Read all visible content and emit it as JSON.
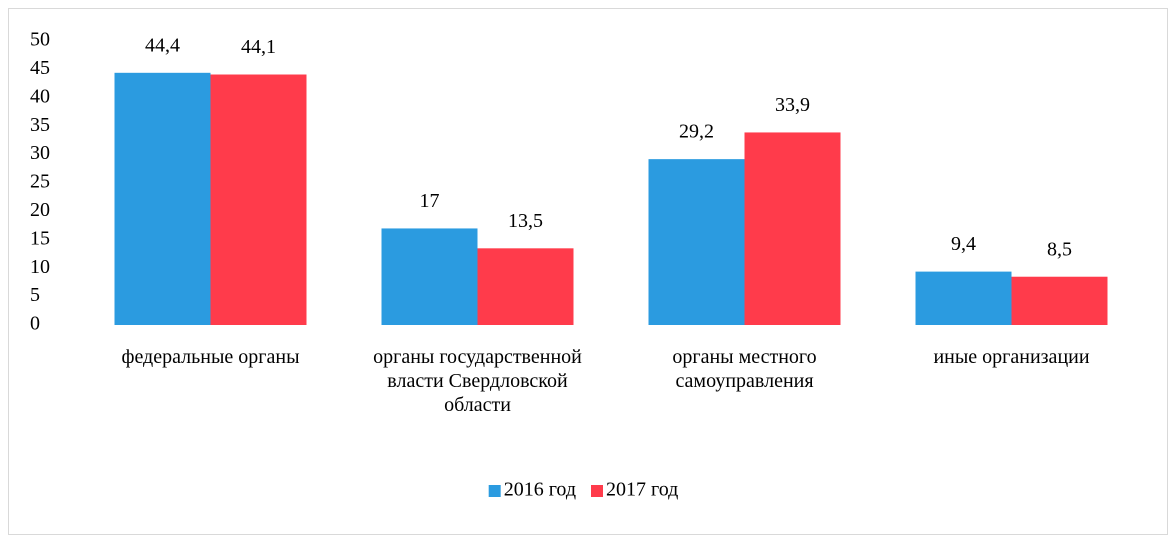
{
  "chart_data": {
    "type": "bar",
    "categories": [
      "федеральные органы",
      "органы государственной власти Свердловской области",
      "органы местного самоуправления",
      "иные организации"
    ],
    "series": [
      {
        "name": "2016 год",
        "color": "#2b9be0",
        "values": [
          44.4,
          17,
          29.2,
          9.4
        ],
        "value_labels": [
          "44,4",
          "17",
          "29,2",
          "9,4"
        ]
      },
      {
        "name": "2017 год",
        "color": "#ff3b4b",
        "values": [
          44.1,
          13.5,
          33.9,
          8.5
        ],
        "value_labels": [
          "44,1",
          "13,5",
          "33,9",
          "8,5"
        ]
      }
    ],
    "ylim": [
      0,
      50
    ],
    "yticks": [
      0,
      5,
      10,
      15,
      20,
      25,
      30,
      35,
      40,
      45,
      50
    ],
    "grid": false,
    "legend": "bottom"
  }
}
